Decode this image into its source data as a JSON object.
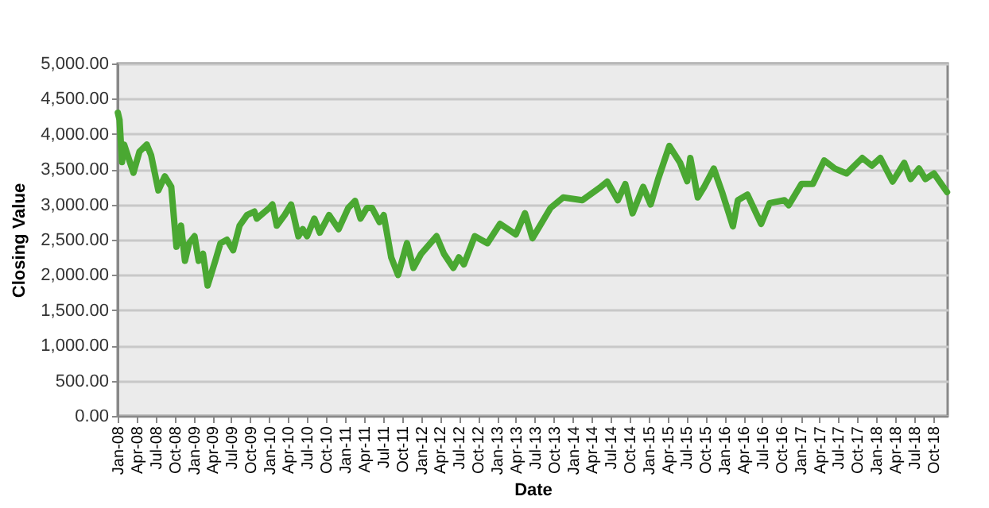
{
  "chart_data": {
    "type": "line",
    "xlabel": "Date",
    "ylabel": "Closing Value",
    "x": [
      "2008-01-02",
      "2008-01-10",
      "2008-01-22",
      "2008-02-01",
      "2008-03-17",
      "2008-04-15",
      "2008-05-20",
      "2008-06-10",
      "2008-07-15",
      "2008-08-15",
      "2008-09-15",
      "2008-10-10",
      "2008-11-01",
      "2008-11-20",
      "2008-12-10",
      "2009-01-05",
      "2009-01-25",
      "2009-02-15",
      "2009-03-09",
      "2009-04-15",
      "2009-05-10",
      "2009-06-10",
      "2009-07-10",
      "2009-08-10",
      "2009-09-15",
      "2009-10-20",
      "2009-11-01",
      "2009-12-31",
      "2010-01-15",
      "2010-02-05",
      "2010-03-15",
      "2010-04-15",
      "2010-05-20",
      "2010-06-10",
      "2010-07-01",
      "2010-08-05",
      "2010-08-31",
      "2010-10-15",
      "2010-11-30",
      "2011-01-15",
      "2011-02-17",
      "2011-03-15",
      "2011-04-15",
      "2011-05-10",
      "2011-06-15",
      "2011-07-05",
      "2011-08-10",
      "2011-09-12",
      "2011-10-25",
      "2011-11-25",
      "2012-01-01",
      "2012-03-15",
      "2012-04-20",
      "2012-06-04",
      "2012-07-01",
      "2012-07-25",
      "2012-09-15",
      "2012-11-15",
      "2013-01-15",
      "2013-04-01",
      "2013-05-15",
      "2013-06-20",
      "2013-09-15",
      "2013-11-15",
      "2014-02-15",
      "2014-05-15",
      "2014-06-15",
      "2014-08-05",
      "2014-09-10",
      "2014-10-15",
      "2014-12-05",
      "2015-01-10",
      "2015-02-15",
      "2015-04-10",
      "2015-06-01",
      "2015-07-05",
      "2015-07-20",
      "2015-08-25",
      "2015-09-25",
      "2015-11-10",
      "2015-12-20",
      "2016-02-10",
      "2016-03-05",
      "2016-04-20",
      "2016-06-25",
      "2016-08-05",
      "2016-10-15",
      "2016-11-05",
      "2017-01-05",
      "2017-03-01",
      "2017-04-25",
      "2017-06-15",
      "2017-08-10",
      "2017-10-25",
      "2017-12-10",
      "2018-01-20",
      "2018-03-20",
      "2018-05-15",
      "2018-06-15",
      "2018-07-25",
      "2018-08-25",
      "2018-10-05",
      "2018-12-07"
    ],
    "series": [
      {
        "color": "#4aa832",
        "values": [
          4300,
          4200,
          3600,
          3850,
          3450,
          3750,
          3850,
          3700,
          3200,
          3400,
          3250,
          2400,
          2700,
          2200,
          2450,
          2550,
          2200,
          2300,
          1850,
          2200,
          2450,
          2500,
          2350,
          2700,
          2850,
          2900,
          2800,
          2950,
          3000,
          2700,
          2850,
          3000,
          2550,
          2650,
          2550,
          2800,
          2600,
          2850,
          2650,
          2950,
          3050,
          2800,
          2950,
          2950,
          2750,
          2850,
          2250,
          2000,
          2450,
          2100,
          2300,
          2550,
          2300,
          2100,
          2250,
          2150,
          2550,
          2450,
          2725,
          2575,
          2875,
          2520,
          2950,
          3100,
          3060,
          3250,
          3325,
          3060,
          3290,
          2875,
          3250,
          3000,
          3360,
          3830,
          3590,
          3330,
          3660,
          3100,
          3250,
          3510,
          3175,
          2690,
          3060,
          3140,
          2725,
          3020,
          3060,
          2990,
          3290,
          3290,
          3625,
          3510,
          3440,
          3660,
          3550,
          3660,
          3325,
          3590,
          3360,
          3510,
          3360,
          3440,
          3175
        ]
      }
    ],
    "ylim": [
      0,
      5000
    ],
    "yticks": [
      {
        "value": 0,
        "label": "0.00"
      },
      {
        "value": 500,
        "label": "500.00"
      },
      {
        "value": 1000,
        "label": "1,000.00"
      },
      {
        "value": 1500,
        "label": "1,500.00"
      },
      {
        "value": 2000,
        "label": "2,000.00"
      },
      {
        "value": 2500,
        "label": "2,500.00"
      },
      {
        "value": 3000,
        "label": "3,000.00"
      },
      {
        "value": 3500,
        "label": "3,500.00"
      },
      {
        "value": 4000,
        "label": "4,000.00"
      },
      {
        "value": 4500,
        "label": "4,500.00"
      },
      {
        "value": 5000,
        "label": "5,000.00"
      }
    ],
    "xlim": [
      "2008-01-01",
      "2018-12-10"
    ],
    "xticks": [
      {
        "value": "2008-01-01",
        "label": "Jan-08"
      },
      {
        "value": "2008-04-01",
        "label": "Apr-08"
      },
      {
        "value": "2008-07-01",
        "label": "Jul-08"
      },
      {
        "value": "2008-10-01",
        "label": "Oct-08"
      },
      {
        "value": "2009-01-01",
        "label": "Jan-09"
      },
      {
        "value": "2009-04-01",
        "label": "Apr-09"
      },
      {
        "value": "2009-07-01",
        "label": "Jul-09"
      },
      {
        "value": "2009-10-01",
        "label": "Oct-09"
      },
      {
        "value": "2010-01-01",
        "label": "Jan-10"
      },
      {
        "value": "2010-04-01",
        "label": "Apr-10"
      },
      {
        "value": "2010-07-01",
        "label": "Jul-10"
      },
      {
        "value": "2010-10-01",
        "label": "Oct-10"
      },
      {
        "value": "2011-01-01",
        "label": "Jan-11"
      },
      {
        "value": "2011-04-01",
        "label": "Apr-11"
      },
      {
        "value": "2011-07-01",
        "label": "Jul-11"
      },
      {
        "value": "2011-10-01",
        "label": "Oct-11"
      },
      {
        "value": "2012-01-01",
        "label": "Jan-12"
      },
      {
        "value": "2012-04-01",
        "label": "Apr-12"
      },
      {
        "value": "2012-07-01",
        "label": "Jul-12"
      },
      {
        "value": "2012-10-01",
        "label": "Oct-12"
      },
      {
        "value": "2013-01-01",
        "label": "Jan-13"
      },
      {
        "value": "2013-04-01",
        "label": "Apr-13"
      },
      {
        "value": "2013-07-01",
        "label": "Jul-13"
      },
      {
        "value": "2013-10-01",
        "label": "Oct-13"
      },
      {
        "value": "2014-01-01",
        "label": "Jan-14"
      },
      {
        "value": "2014-04-01",
        "label": "Apr-14"
      },
      {
        "value": "2014-07-01",
        "label": "Jul-14"
      },
      {
        "value": "2014-10-01",
        "label": "Oct-14"
      },
      {
        "value": "2015-01-01",
        "label": "Jan-15"
      },
      {
        "value": "2015-04-01",
        "label": "Apr-15"
      },
      {
        "value": "2015-07-01",
        "label": "Jul-15"
      },
      {
        "value": "2015-10-01",
        "label": "Oct-15"
      },
      {
        "value": "2016-01-01",
        "label": "Jan-16"
      },
      {
        "value": "2016-04-01",
        "label": "Apr-16"
      },
      {
        "value": "2016-07-01",
        "label": "Jul-16"
      },
      {
        "value": "2016-10-01",
        "label": "Oct-16"
      },
      {
        "value": "2017-01-01",
        "label": "Jan-17"
      },
      {
        "value": "2017-04-01",
        "label": "Apr-17"
      },
      {
        "value": "2017-07-01",
        "label": "Jul-17"
      },
      {
        "value": "2017-10-01",
        "label": "Oct-17"
      },
      {
        "value": "2018-01-01",
        "label": "Jan-18"
      },
      {
        "value": "2018-04-01",
        "label": "Apr-18"
      },
      {
        "value": "2018-07-01",
        "label": "Jul-18"
      },
      {
        "value": "2018-10-01",
        "label": "Oct-18"
      }
    ],
    "grid": "y",
    "marker": "none",
    "line_style": "solid"
  }
}
